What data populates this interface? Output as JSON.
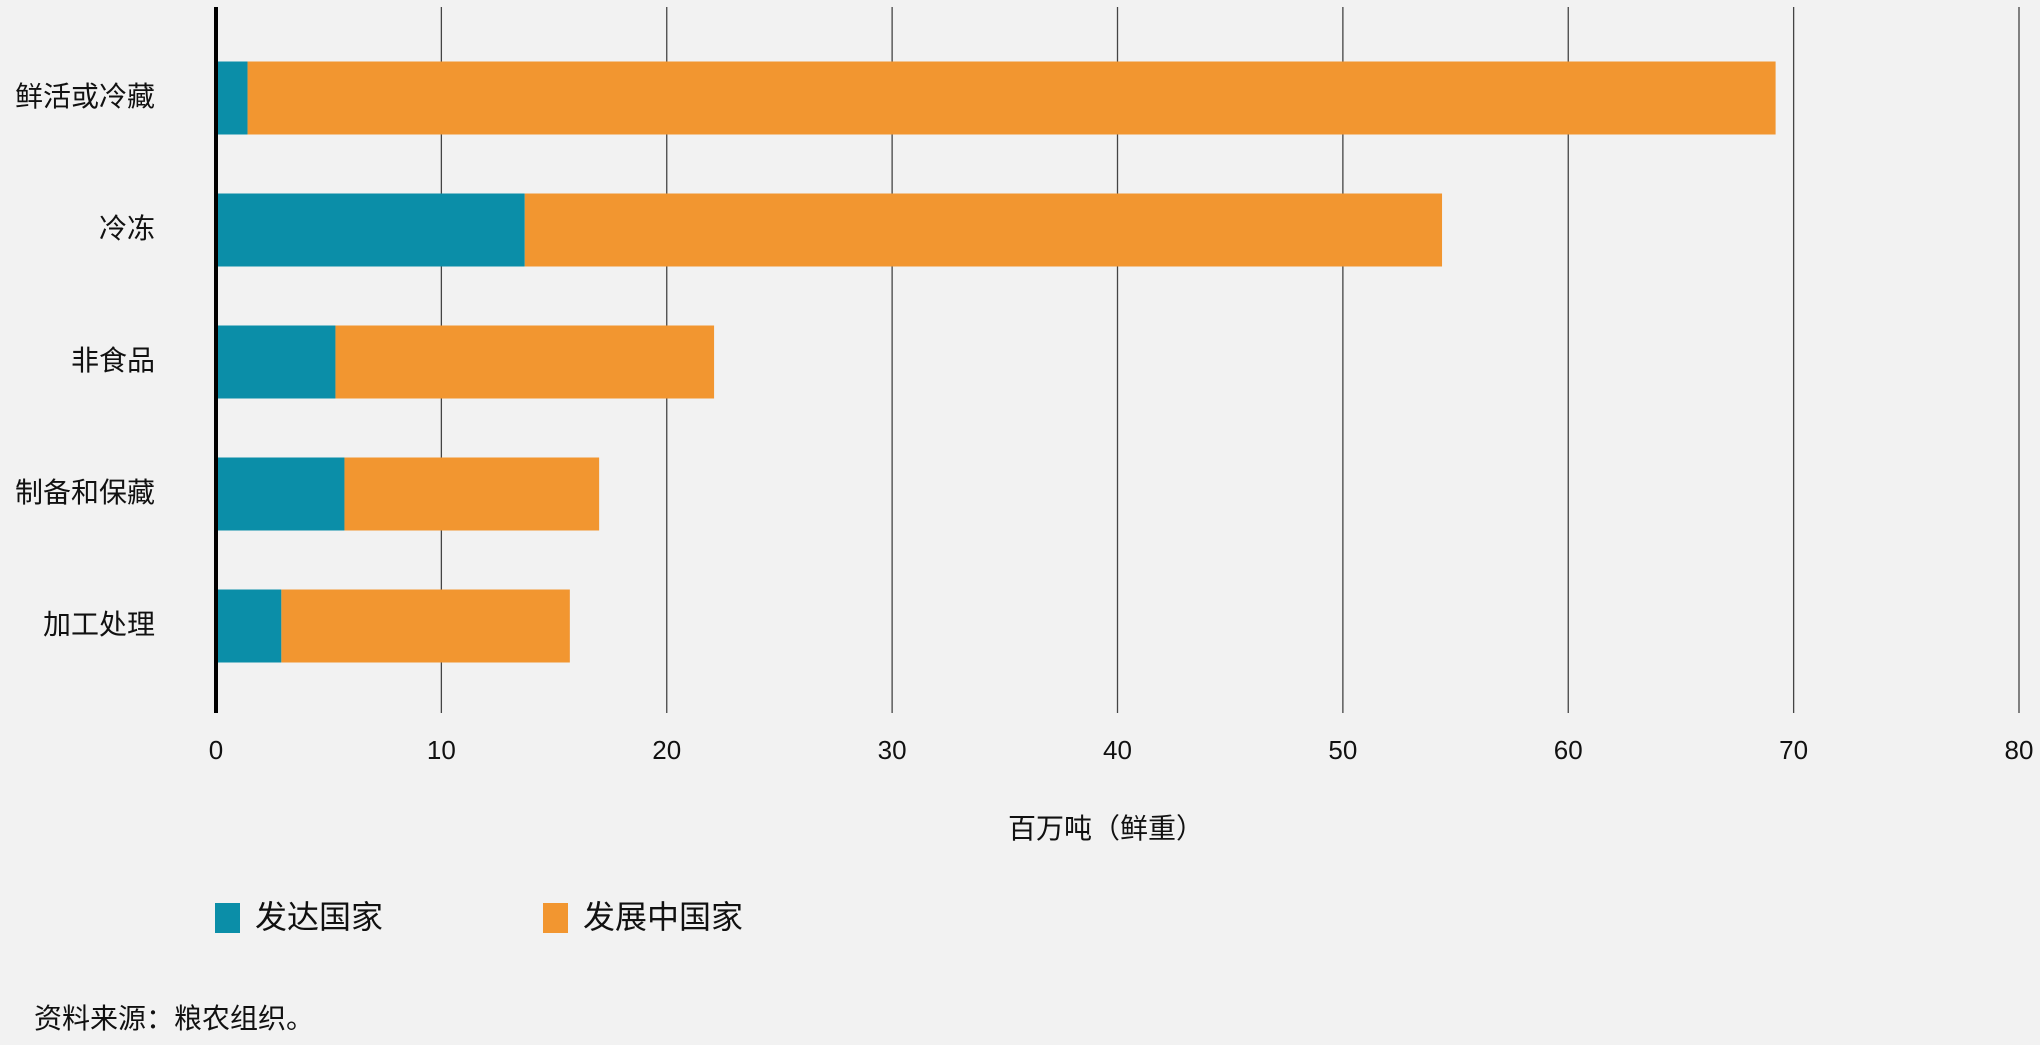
{
  "chart_data": {
    "type": "stacked-barh",
    "categories": [
      "鲜活或冷藏",
      "冷冻",
      "非食品",
      "制备和保藏",
      "加工处理"
    ],
    "series": [
      {
        "name": "发达国家",
        "color": "#0b8ea8",
        "values": [
          1.4,
          13.7,
          5.3,
          5.7,
          2.9
        ]
      },
      {
        "name": "发展中国家",
        "color": "#f29630",
        "values": [
          67.8,
          40.7,
          16.8,
          11.3,
          12.8
        ]
      }
    ],
    "xlabel": "百万吨（鲜重）",
    "xlim": [
      0,
      80
    ],
    "xticks": [
      0,
      10,
      20,
      30,
      40,
      50,
      60,
      70,
      80
    ],
    "grid": true,
    "source": "资料来源：粮农组织。"
  }
}
